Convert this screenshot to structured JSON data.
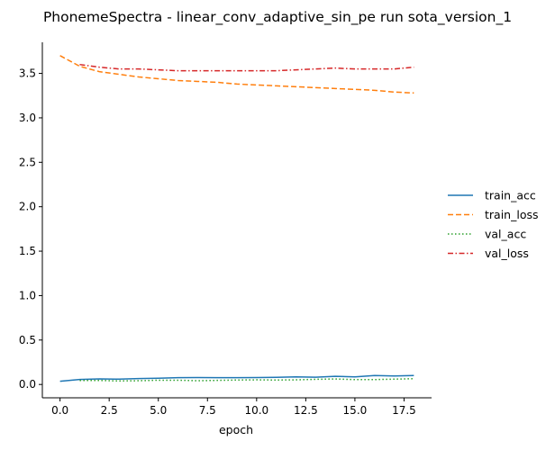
{
  "chart_data": {
    "type": "line",
    "title": "PhonemeSpectra - linear_conv_adaptive_sin_pe run sota_version_1",
    "xlabel": "epoch",
    "ylabel": "",
    "xlim": [
      -0.9,
      18.9
    ],
    "ylim": [
      -0.15,
      3.85
    ],
    "xticks": [
      0.0,
      2.5,
      5.0,
      7.5,
      10.0,
      12.5,
      15.0,
      17.5
    ],
    "xtick_labels": [
      "0.0",
      "2.5",
      "5.0",
      "7.5",
      "10.0",
      "12.5",
      "15.0",
      "17.5"
    ],
    "yticks": [
      0.0,
      0.5,
      1.0,
      1.5,
      2.0,
      2.5,
      3.0,
      3.5
    ],
    "ytick_labels": [
      "0.0",
      "0.5",
      "1.0",
      "1.5",
      "2.0",
      "2.5",
      "3.0",
      "3.5"
    ],
    "grid": false,
    "legend_position": "right",
    "series": [
      {
        "name": "train_acc",
        "color": "#1f77b4",
        "dash": "solid",
        "x": [
          0,
          1,
          2,
          3,
          4,
          5,
          6,
          7,
          8,
          9,
          10,
          11,
          12,
          13,
          14,
          15,
          16,
          17,
          18
        ],
        "values": [
          0.036,
          0.056,
          0.062,
          0.06,
          0.066,
          0.07,
          0.076,
          0.078,
          0.076,
          0.076,
          0.078,
          0.08,
          0.086,
          0.082,
          0.092,
          0.086,
          0.1,
          0.096,
          0.1
        ]
      },
      {
        "name": "train_loss",
        "color": "#ff7f0e",
        "dash": "dashed",
        "x": [
          0,
          1,
          2,
          3,
          4,
          5,
          6,
          7,
          8,
          9,
          10,
          11,
          12,
          13,
          14,
          15,
          16,
          17,
          18
        ],
        "values": [
          3.7,
          3.58,
          3.52,
          3.49,
          3.46,
          3.44,
          3.42,
          3.41,
          3.4,
          3.38,
          3.37,
          3.36,
          3.35,
          3.34,
          3.33,
          3.32,
          3.31,
          3.29,
          3.28
        ]
      },
      {
        "name": "val_acc",
        "color": "#2ca02c",
        "dash": "dotted",
        "x": [
          1,
          2,
          3,
          4,
          5,
          6,
          7,
          8,
          9,
          10,
          11,
          12,
          13,
          14,
          15,
          16,
          17,
          18
        ],
        "values": [
          0.045,
          0.045,
          0.04,
          0.042,
          0.048,
          0.048,
          0.042,
          0.046,
          0.05,
          0.052,
          0.05,
          0.052,
          0.058,
          0.062,
          0.055,
          0.055,
          0.06,
          0.065
        ]
      },
      {
        "name": "val_loss",
        "color": "#d62728",
        "dash": "dashdot",
        "x": [
          1,
          2,
          3,
          4,
          5,
          6,
          7,
          8,
          9,
          10,
          11,
          12,
          13,
          14,
          15,
          16,
          17,
          18
        ],
        "values": [
          3.6,
          3.57,
          3.55,
          3.55,
          3.54,
          3.53,
          3.53,
          3.53,
          3.53,
          3.53,
          3.53,
          3.54,
          3.55,
          3.56,
          3.55,
          3.55,
          3.55,
          3.57
        ]
      }
    ]
  }
}
